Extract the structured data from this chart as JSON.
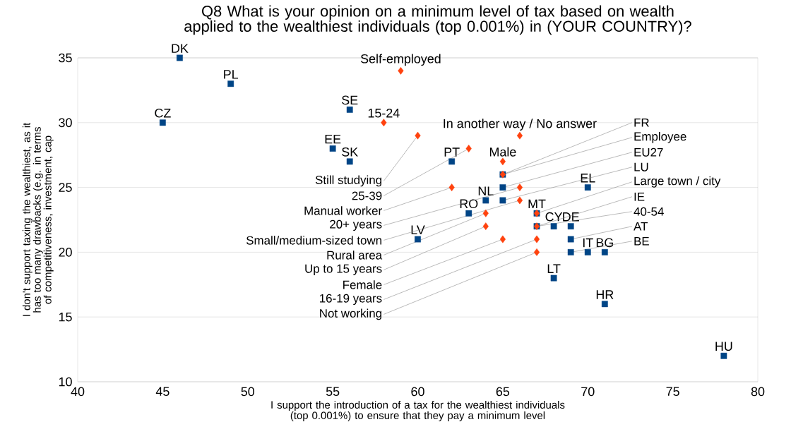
{
  "chart_data": {
    "type": "scatter",
    "title": "Q8 What is your opinion on a minimum level of tax based on wealth applied to the wealthiest individuals (top 0.001%) in (YOUR  COUNTRY)?",
    "xlabel": "I support the introduction of a tax for the wealthiest individuals (top 0.001%) to ensure that they pay a minimum level",
    "ylabel": "I don't support taxing the wealthiest, as it has too many drawbacks (e.g. in terms of competitiveness, investment, cap",
    "xlim": [
      40,
      80
    ],
    "xticks": [
      40,
      45,
      50,
      55,
      60,
      65,
      70,
      75,
      80
    ],
    "ylim": [
      10,
      35
    ],
    "yticks": [
      10,
      15,
      20,
      25,
      30,
      35
    ],
    "grid": "y",
    "series": [
      {
        "color": "#004586",
        "marker": "square",
        "x": [
          46,
          49,
          45,
          56,
          55,
          56,
          62,
          60,
          70,
          68,
          71,
          78,
          69,
          70,
          71,
          67,
          68,
          69,
          69,
          65,
          63,
          64,
          65,
          65,
          67
        ],
        "values": [
          35,
          33,
          30,
          31,
          28,
          27,
          27,
          21,
          25,
          18,
          16,
          12,
          20,
          20,
          20,
          22,
          22,
          22,
          21,
          26,
          23,
          24,
          24,
          25,
          23
        ]
      },
      {
        "color": "#ff420e",
        "marker": "diamond",
        "x": [
          59,
          58,
          60,
          66,
          63,
          65,
          65,
          62,
          66,
          66,
          64,
          67,
          64,
          67,
          65,
          67,
          67
        ],
        "values": [
          34,
          30,
          29,
          29,
          28,
          27,
          26,
          25,
          25,
          24,
          23,
          23,
          22,
          22,
          21,
          21,
          20
        ]
      }
    ],
    "annotations": [
      {
        "text": "DK",
        "x": 46,
        "y": 35
      },
      {
        "text": "PL",
        "x": 49,
        "y": 33
      },
      {
        "text": "CZ",
        "x": 45,
        "y": 30
      },
      {
        "text": "SE",
        "x": 56,
        "y": 31
      },
      {
        "text": "EE",
        "x": 55,
        "y": 28
      },
      {
        "text": "SK",
        "x": 56,
        "y": 27
      },
      {
        "text": "PT",
        "x": 62,
        "y": 27
      },
      {
        "text": "LV",
        "x": 60,
        "y": 21
      },
      {
        "text": "EL",
        "x": 70,
        "y": 25
      },
      {
        "text": "LT",
        "x": 68,
        "y": 18
      },
      {
        "text": "HR",
        "x": 71,
        "y": 16
      },
      {
        "text": "HU",
        "x": 78,
        "y": 12
      },
      {
        "text": "BE",
        "x": 69,
        "y": 20
      },
      {
        "text": "IT",
        "x": 70,
        "y": 20
      },
      {
        "text": "BG",
        "x": 71,
        "y": 20
      },
      {
        "text": "IE",
        "x": 67,
        "y": 22
      },
      {
        "text": "CY",
        "x": 68,
        "y": 22
      },
      {
        "text": "DE",
        "x": 69,
        "y": 22
      },
      {
        "text": "AT",
        "x": 69,
        "y": 21
      },
      {
        "text": "FR",
        "x": 65,
        "y": 26
      },
      {
        "text": "RO",
        "x": 63,
        "y": 23
      },
      {
        "text": "NL",
        "x": 64,
        "y": 24
      },
      {
        "text": "LU",
        "x": 65,
        "y": 24
      },
      {
        "text": "EU27",
        "x": 65,
        "y": 25
      },
      {
        "text": "MT",
        "x": 67,
        "y": 23
      },
      {
        "text": "Self-employed",
        "x": 59,
        "y": 34
      },
      {
        "text": "15-24",
        "x": 58,
        "y": 30
      },
      {
        "text": "Still studying",
        "x": 60,
        "y": 29
      },
      {
        "text": "In another way / No answer",
        "x": 66,
        "y": 29
      },
      {
        "text": "25-39",
        "x": 63,
        "y": 28
      },
      {
        "text": "Male",
        "x": 65,
        "y": 27
      },
      {
        "text": "Employee",
        "x": 65,
        "y": 26
      },
      {
        "text": "Manual worker",
        "x": 62,
        "y": 25
      },
      {
        "text": "20+ years",
        "x": 66,
        "y": 25
      },
      {
        "text": "Small/medium-sized town",
        "x": 66,
        "y": 24
      },
      {
        "text": "Rural area",
        "x": 64,
        "y": 23
      },
      {
        "text": "Large town / city",
        "x": 67,
        "y": 23
      },
      {
        "text": "Up to 15 years",
        "x": 64,
        "y": 22
      },
      {
        "text": "40-54",
        "x": 67,
        "y": 22
      },
      {
        "text": "Female",
        "x": 65,
        "y": 21
      },
      {
        "text": "16-19 years",
        "x": 67,
        "y": 21
      },
      {
        "text": "Not working",
        "x": 67,
        "y": 20
      }
    ]
  }
}
